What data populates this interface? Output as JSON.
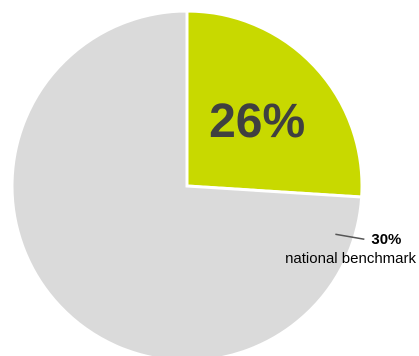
{
  "chart_data": {
    "type": "pie",
    "slices": [
      {
        "label": "26%",
        "value": 26,
        "color": "#C8D900"
      },
      {
        "label": "",
        "value": 74,
        "color": "#DADADA"
      }
    ],
    "benchmark": {
      "value": 30,
      "label": "30%",
      "caption": "national benchmark",
      "line_color": "#555555"
    },
    "start_angle_deg": 0,
    "direction": "clockwise",
    "edge_color": "#FFFFFF"
  }
}
